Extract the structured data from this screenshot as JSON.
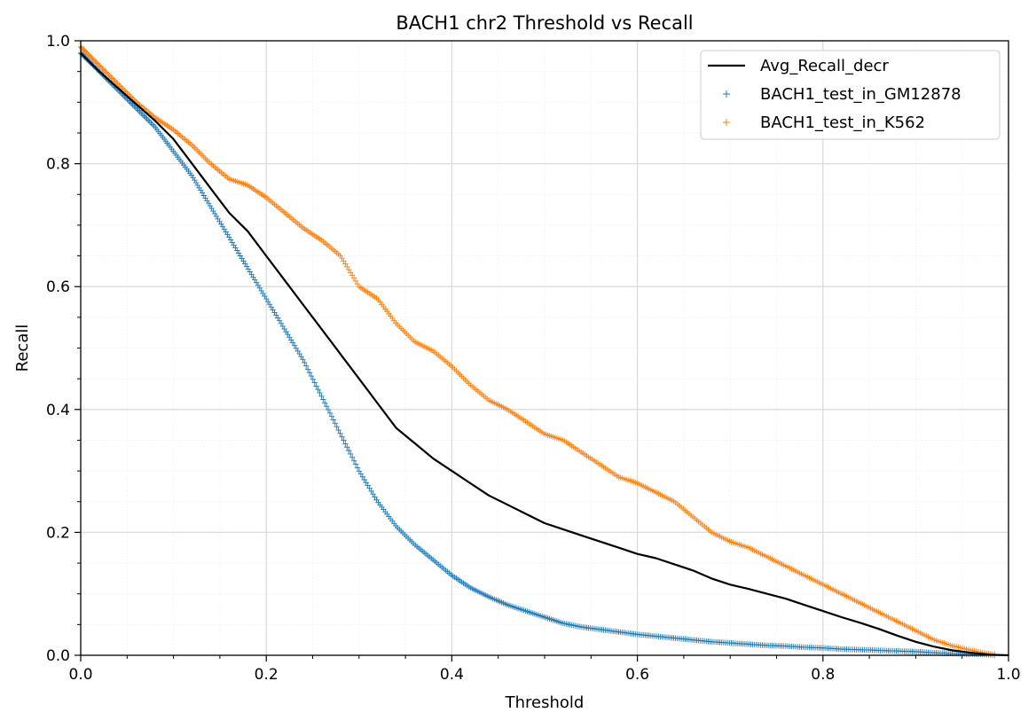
{
  "chart_data": {
    "type": "line",
    "title": "BACH1 chr2 Threshold vs Recall",
    "xlabel": "Threshold",
    "ylabel": "Recall",
    "xlim": [
      0.0,
      1.0
    ],
    "ylim": [
      0.0,
      1.0
    ],
    "grid": true,
    "minor_grid": true,
    "legend_position": "top-right",
    "x_ticks": [
      "0.0",
      "0.2",
      "0.4",
      "0.6",
      "0.8",
      "1.0"
    ],
    "y_ticks": [
      "0.0",
      "0.2",
      "0.4",
      "0.6",
      "0.8",
      "1.0"
    ],
    "series": [
      {
        "name": "Avg_Recall_decr",
        "style": "line",
        "color": "#000000",
        "x": [
          0.0,
          0.02,
          0.05,
          0.08,
          0.1,
          0.12,
          0.14,
          0.16,
          0.18,
          0.2,
          0.22,
          0.24,
          0.26,
          0.28,
          0.3,
          0.32,
          0.34,
          0.36,
          0.38,
          0.4,
          0.42,
          0.44,
          0.46,
          0.48,
          0.5,
          0.52,
          0.54,
          0.56,
          0.58,
          0.6,
          0.62,
          0.64,
          0.66,
          0.68,
          0.7,
          0.72,
          0.74,
          0.76,
          0.78,
          0.8,
          0.82,
          0.84,
          0.86,
          0.88,
          0.9,
          0.92,
          0.94,
          0.96,
          0.98,
          1.0
        ],
        "y": [
          0.98,
          0.95,
          0.91,
          0.87,
          0.84,
          0.8,
          0.76,
          0.72,
          0.69,
          0.65,
          0.61,
          0.57,
          0.53,
          0.49,
          0.45,
          0.41,
          0.37,
          0.345,
          0.32,
          0.3,
          0.28,
          0.26,
          0.245,
          0.23,
          0.215,
          0.205,
          0.195,
          0.185,
          0.175,
          0.165,
          0.158,
          0.148,
          0.138,
          0.125,
          0.115,
          0.108,
          0.1,
          0.092,
          0.082,
          0.072,
          0.062,
          0.053,
          0.043,
          0.032,
          0.022,
          0.014,
          0.008,
          0.004,
          0.001,
          0.0
        ]
      },
      {
        "name": "BACH1_test_in_GM12878",
        "style": "markers",
        "marker": "+",
        "color": "#1f77b4",
        "x": [
          0.0,
          0.02,
          0.04,
          0.06,
          0.08,
          0.1,
          0.12,
          0.14,
          0.16,
          0.18,
          0.2,
          0.22,
          0.24,
          0.26,
          0.28,
          0.3,
          0.32,
          0.34,
          0.36,
          0.38,
          0.4,
          0.42,
          0.44,
          0.46,
          0.48,
          0.5,
          0.52,
          0.54,
          0.56,
          0.58,
          0.6,
          0.62,
          0.64,
          0.66,
          0.68,
          0.7,
          0.72,
          0.74,
          0.76,
          0.78,
          0.8,
          0.82,
          0.84,
          0.86,
          0.88,
          0.9,
          0.92,
          0.94,
          0.96,
          0.98,
          1.0
        ],
        "y": [
          0.98,
          0.95,
          0.92,
          0.89,
          0.86,
          0.82,
          0.78,
          0.73,
          0.68,
          0.63,
          0.58,
          0.53,
          0.48,
          0.42,
          0.36,
          0.3,
          0.25,
          0.21,
          0.18,
          0.155,
          0.13,
          0.11,
          0.095,
          0.082,
          0.072,
          0.062,
          0.052,
          0.046,
          0.042,
          0.038,
          0.034,
          0.031,
          0.028,
          0.025,
          0.022,
          0.02,
          0.018,
          0.016,
          0.015,
          0.013,
          0.012,
          0.01,
          0.009,
          0.008,
          0.007,
          0.006,
          0.004,
          0.003,
          0.002,
          0.001,
          0.0
        ]
      },
      {
        "name": "BACH1_test_in_K562",
        "style": "markers",
        "marker": "+",
        "color": "#ff7f0e",
        "x": [
          0.0,
          0.02,
          0.04,
          0.06,
          0.08,
          0.1,
          0.12,
          0.14,
          0.16,
          0.18,
          0.2,
          0.22,
          0.24,
          0.26,
          0.28,
          0.3,
          0.32,
          0.34,
          0.36,
          0.38,
          0.4,
          0.42,
          0.44,
          0.46,
          0.48,
          0.5,
          0.52,
          0.54,
          0.56,
          0.58,
          0.6,
          0.62,
          0.64,
          0.66,
          0.68,
          0.7,
          0.72,
          0.74,
          0.76,
          0.78,
          0.8,
          0.82,
          0.84,
          0.86,
          0.88,
          0.9,
          0.92,
          0.94,
          0.96,
          0.98,
          1.0
        ],
        "y": [
          0.99,
          0.96,
          0.93,
          0.9,
          0.875,
          0.855,
          0.83,
          0.8,
          0.775,
          0.765,
          0.745,
          0.72,
          0.695,
          0.675,
          0.65,
          0.6,
          0.58,
          0.54,
          0.51,
          0.495,
          0.47,
          0.44,
          0.415,
          0.4,
          0.38,
          0.36,
          0.35,
          0.33,
          0.31,
          0.29,
          0.28,
          0.265,
          0.25,
          0.225,
          0.2,
          0.185,
          0.175,
          0.16,
          0.145,
          0.13,
          0.115,
          0.1,
          0.085,
          0.07,
          0.055,
          0.04,
          0.025,
          0.015,
          0.008,
          0.002,
          0.0
        ]
      }
    ]
  }
}
